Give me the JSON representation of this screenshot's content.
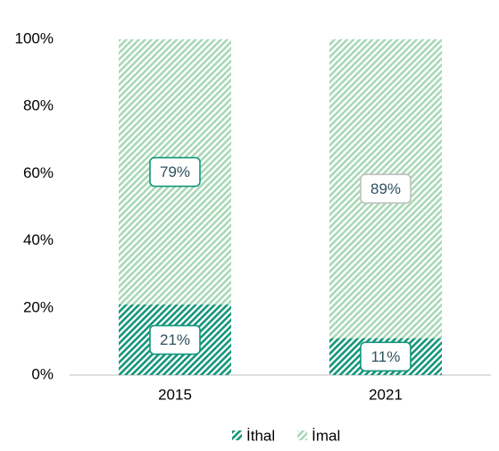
{
  "chart_data": {
    "type": "stacked-bar",
    "categories": [
      "2015",
      "2021"
    ],
    "series": [
      {
        "name": "İthal",
        "color": "#14957a",
        "values": [
          21,
          11
        ],
        "value_labels": [
          "21%",
          "11%"
        ]
      },
      {
        "name": "İmal",
        "color": "#a8d8b5",
        "values": [
          79,
          89
        ],
        "value_labels": [
          "79%",
          "89%"
        ]
      }
    ],
    "ylim": [
      0,
      100
    ],
    "yticks": [
      {
        "value": 0,
        "label": "0%"
      },
      {
        "value": 20,
        "label": "20%"
      },
      {
        "value": 40,
        "label": "40%"
      },
      {
        "value": 60,
        "label": "60%"
      },
      {
        "value": 80,
        "label": "80%"
      },
      {
        "value": 100,
        "label": "100%"
      }
    ],
    "legend": "bottom"
  }
}
